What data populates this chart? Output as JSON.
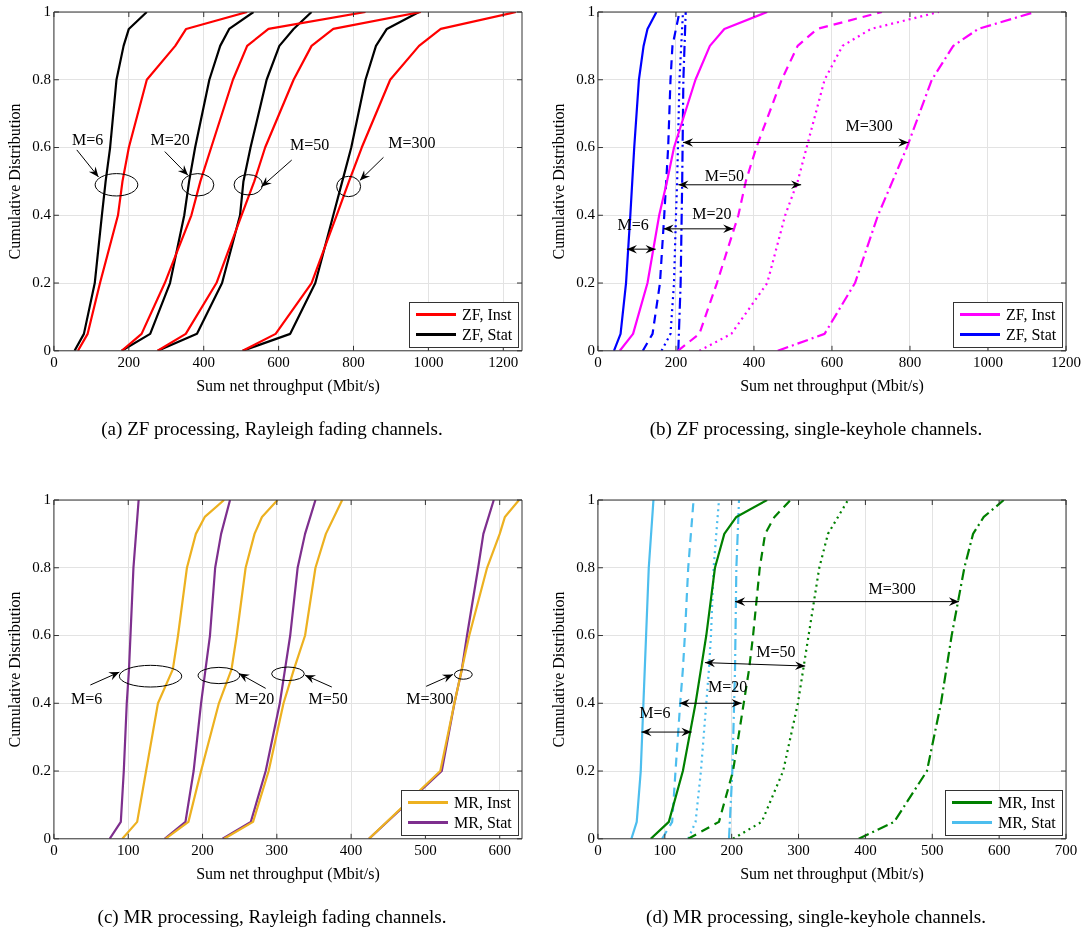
{
  "chart_data": [
    {
      "type": "line",
      "title": "(a) ZF processing, Rayleigh fading channels.",
      "xlabel": "Sum net throughput (Mbit/s)",
      "ylabel": "Cumulative Distribution",
      "xlim": [
        0,
        1250
      ],
      "xticks": [
        0,
        200,
        400,
        600,
        800,
        1000,
        1200
      ],
      "ylim": [
        0,
        1
      ],
      "yticks": [
        0,
        0.2,
        0.4,
        0.6,
        0.8,
        1
      ],
      "grid": true,
      "legend": "bottom right",
      "line_style": "solid",
      "annotations": [
        "M=6",
        "M=20",
        "M=50",
        "M=300"
      ],
      "series": [
        {
          "name": "ZF, Inst",
          "color": "#ff0000",
          "x": [
            64,
            90,
            123,
            171,
            183,
            200,
            248,
            324,
            353,
            516
          ],
          "values": [
            0,
            0.05,
            0.2,
            0.4,
            0.5,
            0.6,
            0.8,
            0.9,
            0.95,
            1
          ]
        },
        {
          "name": "ZF, Stat",
          "color": "#000000",
          "x": [
            55,
            80,
            109,
            128,
            138,
            150,
            167,
            186,
            200,
            248
          ],
          "values": [
            0,
            0.05,
            0.2,
            0.4,
            0.5,
            0.6,
            0.8,
            0.9,
            0.95,
            1
          ]
        },
        {
          "color": "#ff0000",
          "x": [
            181,
            234,
            296,
            367,
            391,
            420,
            478,
            516,
            573,
            832
          ],
          "values": [
            0,
            0.05,
            0.2,
            0.4,
            0.5,
            0.6,
            0.8,
            0.9,
            0.95,
            1
          ]
        },
        {
          "color": "#000000",
          "x": [
            181,
            257,
            310,
            348,
            361,
            377,
            415,
            444,
            468,
            533
          ],
          "values": [
            0,
            0.05,
            0.2,
            0.4,
            0.5,
            0.6,
            0.8,
            0.9,
            0.95,
            1
          ]
        },
        {
          "color": "#ff0000",
          "x": [
            277,
            352,
            434,
            501,
            535,
            564,
            640,
            688,
            746,
            980
          ],
          "values": [
            0,
            0.05,
            0.2,
            0.4,
            0.5,
            0.6,
            0.8,
            0.9,
            0.95,
            1
          ]
        },
        {
          "color": "#000000",
          "x": [
            277,
            382,
            449,
            497,
            506,
            525,
            568,
            602,
            640,
            688
          ],
          "values": [
            0,
            0.05,
            0.2,
            0.4,
            0.5,
            0.6,
            0.8,
            0.9,
            0.95,
            1
          ]
        },
        {
          "color": "#ff0000",
          "x": [
            504,
            592,
            688,
            755,
            788,
            822,
            898,
            975,
            1033,
            1234
          ],
          "values": [
            0,
            0.05,
            0.2,
            0.4,
            0.5,
            0.6,
            0.8,
            0.9,
            0.95,
            1
          ]
        },
        {
          "color": "#000000",
          "x": [
            504,
            631,
            698,
            746,
            770,
            794,
            832,
            860,
            889,
            975
          ],
          "values": [
            0,
            0.05,
            0.2,
            0.4,
            0.5,
            0.6,
            0.8,
            0.9,
            0.95,
            1
          ]
        }
      ]
    },
    {
      "type": "line",
      "title": "(b) ZF processing, single-keyhole channels.",
      "xlabel": "Sum net throughput (Mbit/s)",
      "ylabel": "Cumulative Distribution",
      "xlim": [
        0,
        1200
      ],
      "xticks": [
        0,
        200,
        400,
        600,
        800,
        1000,
        1200
      ],
      "ylim": [
        0,
        1
      ],
      "yticks": [
        0,
        0.2,
        0.4,
        0.6,
        0.8,
        1
      ],
      "grid": true,
      "legend": "bottom right",
      "annotations": [
        {
          "text": "M=6",
          "x": 148,
          "y": 0.3
        },
        {
          "text": "M=20",
          "x": 347,
          "y": 0.36
        },
        {
          "text": "M=50",
          "x": 206,
          "y": 0.49
        },
        {
          "text": "M=300",
          "x": 796,
          "y": 0.615
        }
      ],
      "series": [
        {
          "name": "ZF, Inst",
          "color": "#ff00ff",
          "line_style": "solid",
          "x": [
            56,
            90,
            127,
            157,
            177,
            195,
            250,
            287,
            324,
            434
          ],
          "values": [
            0,
            0.05,
            0.2,
            0.4,
            0.5,
            0.6,
            0.8,
            0.9,
            0.95,
            1
          ]
        },
        {
          "name": "ZF, Stat",
          "color": "#0000ff",
          "line_style": "solid",
          "x": [
            41,
            58,
            72,
            83,
            88,
            93,
            105,
            117,
            127,
            150
          ],
          "values": [
            0,
            0.05,
            0.2,
            0.4,
            0.5,
            0.6,
            0.8,
            0.9,
            0.95,
            1
          ]
        },
        {
          "color": "#ff00ff",
          "line_style": "dashed",
          "x": [
            205,
            260,
            305,
            360,
            379,
            406,
            471,
            512,
            562,
            728
          ],
          "values": [
            0,
            0.05,
            0.2,
            0.4,
            0.5,
            0.6,
            0.8,
            0.9,
            0.95,
            1
          ]
        },
        {
          "color": "#0000ff",
          "line_style": "dashed",
          "x": [
            115,
            140,
            159,
            170,
            175,
            180,
            186,
            191,
            209
          ],
          "values": [
            0,
            0.05,
            0.2,
            0.4,
            0.5,
            0.6,
            0.8,
            0.9,
            1
          ]
        },
        {
          "color": "#ff00ff",
          "line_style": "dotted",
          "x": [
            260,
            342,
            434,
            480,
            512,
            535,
            581,
            627,
            700,
            874
          ],
          "values": [
            0,
            0.05,
            0.2,
            0.4,
            0.5,
            0.6,
            0.8,
            0.9,
            0.95,
            1
          ]
        },
        {
          "color": "#0000ff",
          "line_style": "dotted",
          "x": [
            163,
            186,
            195,
            200,
            203,
            205,
            209,
            218
          ],
          "values": [
            0,
            0.05,
            0.2,
            0.4,
            0.5,
            0.6,
            0.8,
            1
          ]
        },
        {
          "color": "#ff00ff",
          "line_style": "dashdot",
          "x": [
            461,
            581,
            659,
            718,
            755,
            792,
            856,
            911,
            975,
            1120
          ],
          "values": [
            0,
            0.05,
            0.2,
            0.4,
            0.5,
            0.6,
            0.8,
            0.9,
            0.95,
            1
          ]
        },
        {
          "color": "#0000ff",
          "line_style": "dashdot",
          "x": [
            206,
            212,
            216,
            219,
            225
          ],
          "values": [
            0,
            0.2,
            0.5,
            0.8,
            1
          ]
        }
      ]
    },
    {
      "type": "line",
      "title": "(c) MR processing, Rayleigh fading channels.",
      "xlabel": "Sum net throughput (Mbit/s)",
      "ylabel": "Cumulative Distribution",
      "xlim": [
        0,
        630
      ],
      "xticks": [
        0,
        100,
        200,
        300,
        400,
        500,
        600
      ],
      "ylim": [
        0,
        1
      ],
      "yticks": [
        0,
        0.2,
        0.4,
        0.6,
        0.8,
        1
      ],
      "grid": true,
      "legend": "bottom right",
      "line_style": "solid",
      "annotations": [
        "M=6",
        "M=20",
        "M=50",
        "M=300"
      ],
      "series": [
        {
          "name": "MR, Inst",
          "color": "#edb120",
          "x": [
            92,
            112,
            124,
            140,
            160,
            167,
            179,
            191,
            203,
            229
          ],
          "values": [
            0,
            0.05,
            0.2,
            0.4,
            0.5,
            0.6,
            0.8,
            0.9,
            0.95,
            1
          ]
        },
        {
          "name": "MR, Stat",
          "color": "#7e2f8e",
          "x": [
            75,
            90,
            94,
            98,
            101,
            103,
            107,
            114
          ],
          "values": [
            0,
            0.05,
            0.2,
            0.4,
            0.5,
            0.6,
            0.8,
            1
          ]
        },
        {
          "color": "#edb120",
          "x": [
            150,
            181,
            198,
            222,
            239,
            246,
            258,
            270,
            280,
            301
          ],
          "values": [
            0,
            0.05,
            0.2,
            0.4,
            0.5,
            0.6,
            0.8,
            0.9,
            0.95,
            1
          ]
        },
        {
          "color": "#7e2f8e",
          "x": [
            149,
            177,
            188,
            198,
            204,
            210,
            217,
            225,
            237
          ],
          "values": [
            0,
            0.05,
            0.2,
            0.4,
            0.5,
            0.6,
            0.8,
            0.9,
            1
          ]
        },
        {
          "color": "#edb120",
          "x": [
            229,
            268,
            289,
            309,
            323,
            338,
            352,
            366,
            388
          ],
          "values": [
            0,
            0.05,
            0.2,
            0.4,
            0.5,
            0.6,
            0.8,
            0.9,
            1
          ]
        },
        {
          "color": "#7e2f8e",
          "x": [
            227,
            265,
            285,
            304,
            311,
            318,
            328,
            338,
            352
          ],
          "values": [
            0,
            0.05,
            0.2,
            0.4,
            0.5,
            0.6,
            0.8,
            0.9,
            1
          ]
        },
        {
          "color": "#edb120",
          "x": [
            424,
            482,
            520,
            539,
            549,
            559,
            583,
            600,
            607,
            626
          ],
          "values": [
            0,
            null,
            0.2,
            0.4,
            0.5,
            0.6,
            0.8,
            0.9,
            0.95,
            1
          ]
        },
        {
          "color": "#7e2f8e",
          "x": [
            424,
            496,
            522,
            539,
            549,
            556,
            571,
            578,
            592
          ],
          "values": [
            0,
            null,
            0.2,
            0.4,
            0.5,
            0.6,
            0.8,
            0.9,
            1
          ]
        }
      ]
    },
    {
      "type": "line",
      "title": "(d) MR processing, single-keyhole channels.",
      "xlabel": "Sum net throughput (Mbit/s)",
      "ylabel": "Cumulative Distribution",
      "xlim": [
        0,
        700
      ],
      "xticks": [
        0,
        100,
        200,
        300,
        400,
        500,
        600,
        700
      ],
      "ylim": [
        0,
        1
      ],
      "yticks": [
        0,
        0.2,
        0.4,
        0.6,
        0.8,
        1
      ],
      "grid": true,
      "legend": "bottom right",
      "annotations": [
        {
          "text": "M=6",
          "x": 140,
          "y": 0.315
        },
        {
          "text": "M=20",
          "x": 215,
          "y": 0.4
        },
        {
          "text": "M=50",
          "x": 310,
          "y": 0.51
        },
        {
          "text": "M=300",
          "x": 540,
          "y": 0.7
        }
      ],
      "series": [
        {
          "name": "MR, Inst",
          "color": "#008000",
          "line_style": "solid",
          "x": [
            79,
            106,
            127,
            146,
            154,
            162,
            175,
            189,
            207,
            253
          ],
          "values": [
            0,
            0.05,
            0.2,
            0.4,
            0.5,
            0.6,
            0.8,
            0.9,
            0.95,
            1
          ]
        },
        {
          "name": "MR, Stat",
          "color": "#4dbeee",
          "line_style": "solid",
          "x": [
            50,
            58,
            64,
            68,
            70,
            72,
            76,
            83
          ],
          "values": [
            0,
            0.05,
            0.2,
            0.4,
            0.5,
            0.6,
            0.8,
            1
          ]
        },
        {
          "color": "#008000",
          "line_style": "dashed",
          "x": [
            135,
            181,
            202,
            218,
            226,
            232,
            242,
            250,
            264,
            288
          ],
          "values": [
            0,
            0.05,
            0.2,
            0.4,
            0.5,
            0.6,
            0.8,
            0.9,
            0.95,
            1
          ]
        },
        {
          "color": "#4dbeee",
          "line_style": "dashed",
          "x": [
            96,
            111,
            116,
            123,
            127,
            130,
            135,
            143
          ],
          "values": [
            0,
            0.05,
            0.2,
            0.4,
            0.5,
            0.6,
            0.8,
            1
          ]
        },
        {
          "color": "#008000",
          "line_style": "dotted",
          "x": [
            202,
            245,
            277,
            299,
            307,
            315,
            331,
            344,
            374
          ],
          "values": [
            0,
            0.05,
            0.2,
            0.4,
            0.5,
            0.6,
            0.8,
            0.9,
            1
          ]
        },
        {
          "color": "#4dbeee",
          "line_style": "dotted",
          "x": [
            135,
            146,
            154,
            162,
            166,
            169,
            173,
            181
          ],
          "values": [
            0,
            0.05,
            0.2,
            0.4,
            0.5,
            0.6,
            0.8,
            1
          ]
        },
        {
          "color": "#008000",
          "line_style": "dashdot",
          "x": [
            390,
            443,
            492,
            513,
            521,
            529,
            548,
            561,
            577,
            607
          ],
          "values": [
            0,
            0.05,
            0.2,
            0.4,
            0.5,
            0.6,
            0.8,
            0.9,
            0.95,
            1
          ]
        },
        {
          "color": "#4dbeee",
          "line_style": "dashdot",
          "x": [
            196,
            201,
            205,
            207,
            211
          ],
          "values": [
            0,
            0.2,
            0.5,
            0.8,
            1
          ]
        }
      ]
    }
  ]
}
